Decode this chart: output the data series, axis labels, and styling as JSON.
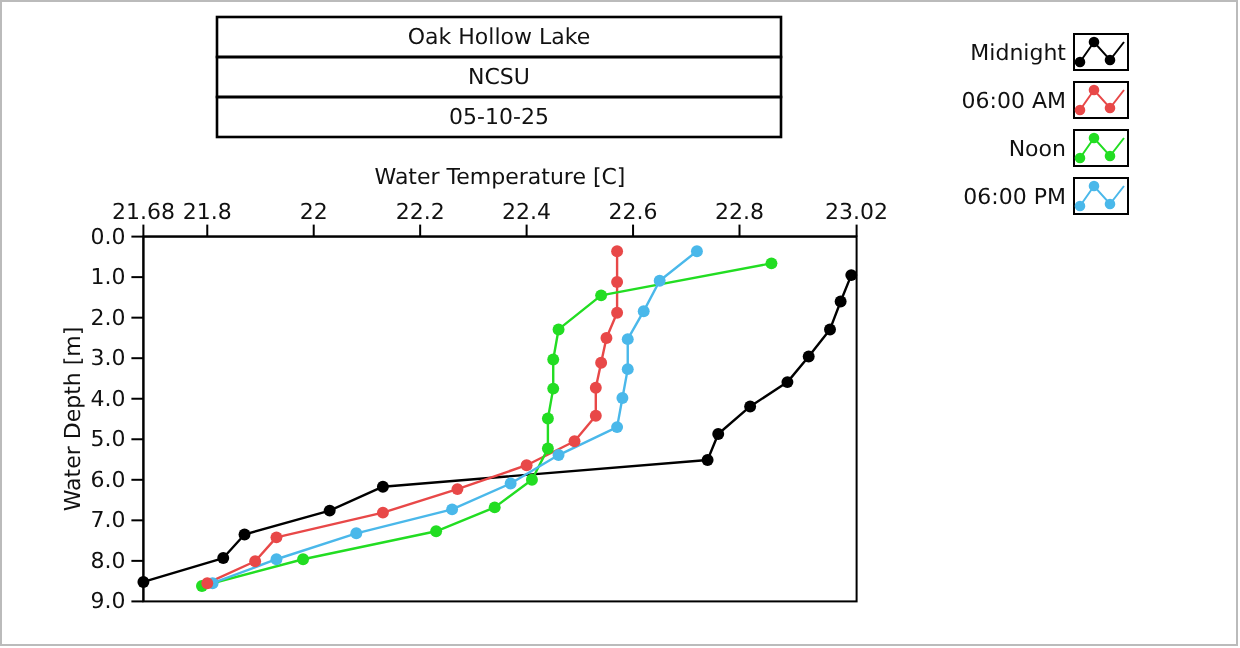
{
  "chart_data": {
    "type": "line",
    "title": "Oak Hollow Lake",
    "subtitle": "NCSU",
    "annotations": [
      "05-10-25"
    ],
    "xlabel": "Water Temperature [C]",
    "ylabel": "Water Depth [m]",
    "xlim": [
      21.68,
      23.02
    ],
    "xticks": [
      21.68,
      21.8,
      22,
      22.2,
      22.4,
      22.6,
      22.8,
      23.02
    ],
    "ylim": [
      9,
      0
    ],
    "yticks": [
      {
        "value": 0,
        "label": "0.0"
      },
      {
        "value": 1,
        "label": "1.0"
      },
      {
        "value": 2,
        "label": "2.0"
      },
      {
        "value": 3,
        "label": "3.0"
      },
      {
        "value": 4,
        "label": "4.0"
      },
      {
        "value": 5,
        "label": "5.0"
      },
      {
        "value": 6,
        "label": "6.0"
      },
      {
        "value": 7,
        "label": "7.0"
      },
      {
        "value": 8,
        "label": "8.0"
      },
      {
        "value": 9,
        "label": "9.0"
      }
    ],
    "grid": false,
    "legend": "top right",
    "marker": "circle",
    "line_style": "solid",
    "series": [
      {
        "name": "Midnight",
        "color": "#000000",
        "x": [
          23.01,
          22.99,
          22.97,
          22.93,
          22.89,
          22.82,
          22.76,
          22.74,
          22.13,
          22.03,
          21.87,
          21.83,
          21.68
        ],
        "values": [
          0.95,
          1.6,
          2.29,
          2.96,
          3.59,
          4.19,
          4.87,
          5.51,
          6.17,
          6.76,
          7.35,
          7.93,
          8.52
        ]
      },
      {
        "name": "06:00 AM",
        "color": "#e84848",
        "x": [
          22.57,
          22.57,
          22.57,
          22.55,
          22.54,
          22.53,
          22.53,
          22.49,
          22.4,
          22.27,
          22.13,
          21.93,
          21.89,
          21.8
        ],
        "values": [
          0.36,
          1.12,
          1.88,
          2.5,
          3.11,
          3.73,
          4.42,
          5.05,
          5.64,
          6.23,
          6.81,
          7.42,
          8.01,
          8.55
        ]
      },
      {
        "name": "Noon",
        "color": "#22dd22",
        "x": [
          22.86,
          22.54,
          22.46,
          22.45,
          22.45,
          22.44,
          22.44,
          22.41,
          22.34,
          22.23,
          21.98,
          21.79
        ],
        "values": [
          0.66,
          1.45,
          2.29,
          3.03,
          3.75,
          4.49,
          5.23,
          6.0,
          6.68,
          7.27,
          7.96,
          8.62
        ]
      },
      {
        "name": "06:00 PM",
        "color": "#4ab8ea",
        "x": [
          22.72,
          22.65,
          22.62,
          22.59,
          22.59,
          22.58,
          22.57,
          22.46,
          22.37,
          22.26,
          22.08,
          21.93,
          21.81
        ],
        "values": [
          0.36,
          1.09,
          1.84,
          2.53,
          3.27,
          3.98,
          4.7,
          5.39,
          6.09,
          6.73,
          7.32,
          7.96,
          8.55
        ]
      }
    ]
  }
}
